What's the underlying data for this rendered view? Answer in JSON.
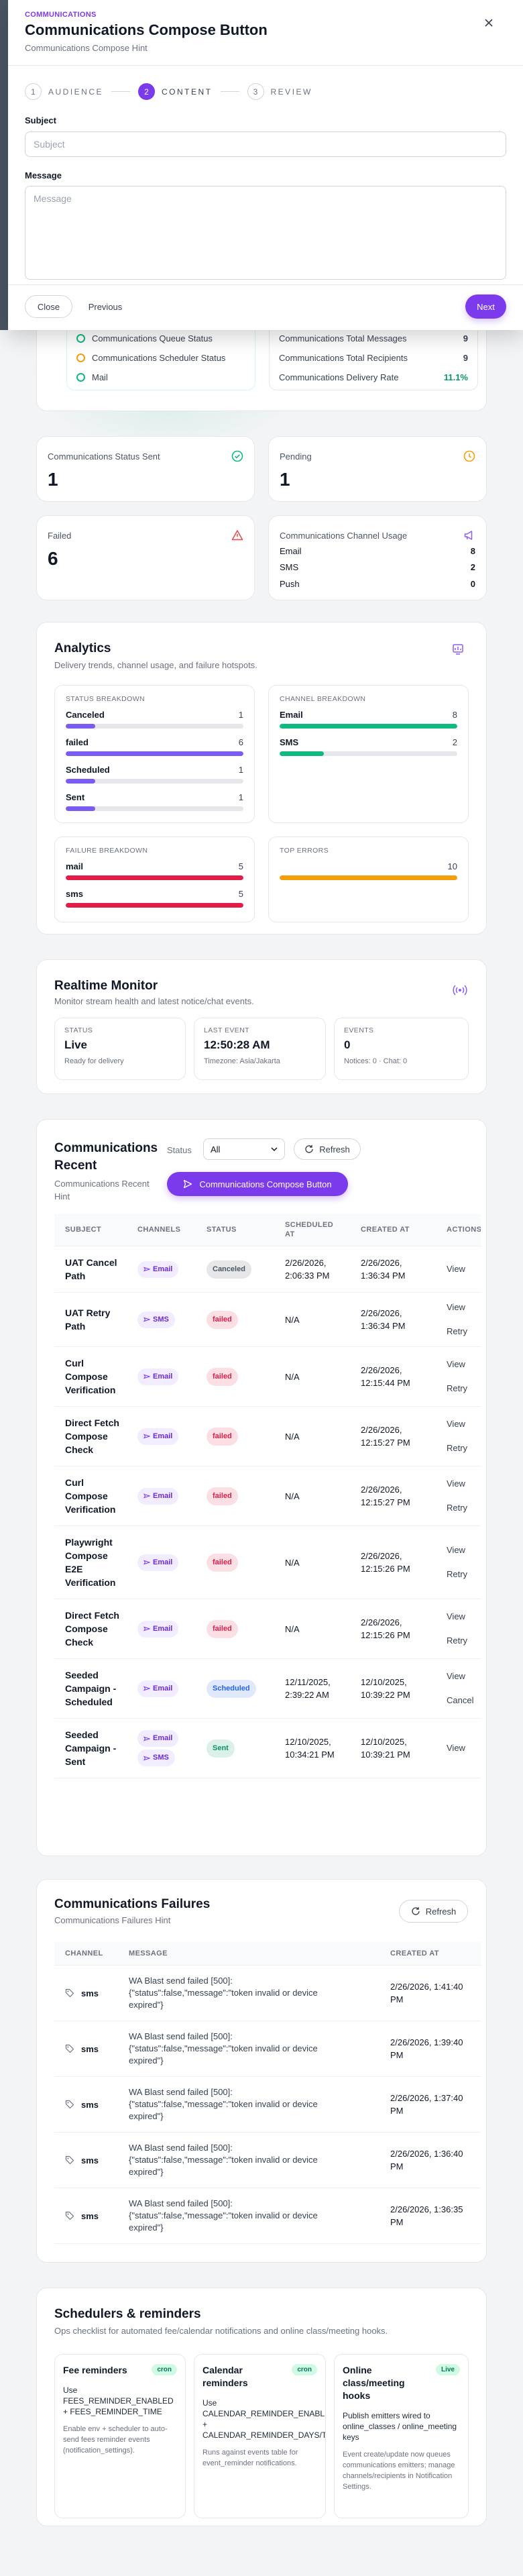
{
  "modal": {
    "eyebrow": "COMMUNICATIONS",
    "title": "Communications Compose Button",
    "hint": "Communications Compose Hint",
    "steps": [
      {
        "number": "1",
        "label": "AUDIENCE"
      },
      {
        "number": "2",
        "label": "CONTENT"
      },
      {
        "number": "3",
        "label": "REVIEW"
      }
    ],
    "subject_label": "Subject",
    "subject_placeholder": "Subject",
    "message_label": "Message",
    "message_placeholder": "Message",
    "close": "Close",
    "previous": "Previous",
    "next": "Next"
  },
  "overview": {
    "statuses": [
      "Communications Queue Status",
      "Communications Scheduler Status",
      "Mail"
    ],
    "totals": [
      {
        "label": "Communications Total Messages",
        "value": "9"
      },
      {
        "label": "Communications Total Recipients",
        "value": "9"
      },
      {
        "label": "Communications Delivery Rate",
        "value": "11.1%"
      }
    ]
  },
  "stats": {
    "sent": {
      "label": "Communications Status Sent",
      "value": "1"
    },
    "pending": {
      "label": "Pending",
      "value": "1"
    },
    "failed": {
      "label": "Failed",
      "value": "6"
    },
    "channel_usage": {
      "label": "Communications Channel Usage",
      "rows": [
        {
          "label": "Email",
          "value": "8"
        },
        {
          "label": "SMS",
          "value": "2"
        },
        {
          "label": "Push",
          "value": "0"
        }
      ]
    }
  },
  "analytics": {
    "title": "Analytics",
    "subtitle": "Delivery trends, channel usage, and failure hotspots.",
    "groups": [
      {
        "title": "STATUS BREAKDOWN",
        "color": "#7c5cf0",
        "items": [
          {
            "label": "Canceled",
            "value": 1
          },
          {
            "label": "failed",
            "value": 6
          },
          {
            "label": "Scheduled",
            "value": 1
          },
          {
            "label": "Sent",
            "value": 1
          }
        ]
      },
      {
        "title": "CHANNEL BREAKDOWN",
        "color": "#10b981",
        "items": [
          {
            "label": "Email",
            "value": 8
          },
          {
            "label": "SMS",
            "value": 2
          }
        ]
      },
      {
        "title": "FAILURE BREAKDOWN",
        "color": "#e11d48",
        "items": [
          {
            "label": "mail",
            "value": 5
          },
          {
            "label": "sms",
            "value": 5
          }
        ]
      },
      {
        "title": "TOP ERRORS",
        "color": "#f59e0b",
        "items": [
          {
            "value": 10
          }
        ]
      }
    ]
  },
  "realtime": {
    "title": "Realtime Monitor",
    "subtitle": "Monitor stream health and latest notice/chat events.",
    "boxes": [
      {
        "label": "STATUS",
        "value": "Live",
        "note": "Ready for delivery"
      },
      {
        "label": "LAST EVENT",
        "value": "12:50:28 AM",
        "note": "Timezone: Asia/Jakarta"
      },
      {
        "label": "EVENTS",
        "value": "0",
        "note": "Notices: 0 · Chat: 0"
      }
    ]
  },
  "recent": {
    "title": "Communications Recent",
    "hint": "Communications Recent Hint",
    "status_label": "Status",
    "status_value": "All",
    "refresh": "Refresh",
    "compose": "Communications Compose Button",
    "columns": [
      "SUBJECT",
      "CHANNELS",
      "STATUS",
      "SCHEDULED AT",
      "CREATED AT",
      "ACTIONS"
    ],
    "rows": [
      {
        "subject": "UAT Cancel Path",
        "channels": [
          "Email"
        ],
        "status": "Canceled",
        "status_color": "#4b5563",
        "scheduled_at": "2/26/2026, 2:06:33 PM",
        "created_at": "2/26/2026, 1:36:34 PM",
        "actions": [
          "View"
        ]
      },
      {
        "subject": "UAT Retry Path",
        "channels": [
          "SMS"
        ],
        "status": "failed",
        "status_color": "#e11d48",
        "scheduled_at": "N/A",
        "created_at": "2/26/2026, 1:36:34 PM",
        "actions": [
          "View",
          "Retry"
        ]
      },
      {
        "subject": "Curl Compose Verification",
        "channels": [
          "Email"
        ],
        "status": "failed",
        "status_color": "#e11d48",
        "scheduled_at": "N/A",
        "created_at": "2/26/2026, 12:15:44 PM",
        "actions": [
          "View",
          "Retry"
        ]
      },
      {
        "subject": "Direct Fetch Compose Check",
        "channels": [
          "Email"
        ],
        "status": "failed",
        "status_color": "#e11d48",
        "scheduled_at": "N/A",
        "created_at": "2/26/2026, 12:15:27 PM",
        "actions": [
          "View",
          "Retry"
        ]
      },
      {
        "subject": "Curl Compose Verification",
        "channels": [
          "Email"
        ],
        "status": "failed",
        "status_color": "#e11d48",
        "scheduled_at": "N/A",
        "created_at": "2/26/2026, 12:15:27 PM",
        "actions": [
          "View",
          "Retry"
        ]
      },
      {
        "subject": "Playwright Compose E2E Verification",
        "channels": [
          "Email"
        ],
        "status": "failed",
        "status_color": "#e11d48",
        "scheduled_at": "N/A",
        "created_at": "2/26/2026, 12:15:26 PM",
        "actions": [
          "View",
          "Retry"
        ]
      },
      {
        "subject": "Direct Fetch Compose Check",
        "channels": [
          "Email"
        ],
        "status": "failed",
        "status_color": "#e11d48",
        "scheduled_at": "N/A",
        "created_at": "2/26/2026, 12:15:26 PM",
        "actions": [
          "View",
          "Retry"
        ]
      },
      {
        "subject": "Seeded Campaign - Scheduled",
        "channels": [
          "Email"
        ],
        "status": "Scheduled",
        "status_color": "#2563eb",
        "scheduled_at": "12/11/2025, 2:39:22 AM",
        "created_at": "12/10/2025, 10:39:22 PM",
        "actions": [
          "View",
          "Cancel"
        ]
      },
      {
        "subject": "Seeded Campaign - Sent",
        "channels": [
          "Email",
          "SMS"
        ],
        "status": "Sent",
        "status_color": "#059669",
        "scheduled_at": "12/10/2025, 10:34:21 PM",
        "created_at": "12/10/2025, 10:39:21 PM",
        "actions": [
          "View"
        ]
      }
    ]
  },
  "failures": {
    "title": "Communications Failures",
    "hint": "Communications Failures Hint",
    "refresh": "Refresh",
    "columns": [
      "CHANNEL",
      "MESSAGE",
      "CREATED AT"
    ],
    "rows": [
      {
        "channel": "sms",
        "message": "WA Blast send failed [500]: {\"status\":false,\"message\":\"token invalid or device expired\"}",
        "created_at": "2/26/2026, 1:41:40 PM"
      },
      {
        "channel": "sms",
        "message": "WA Blast send failed [500]: {\"status\":false,\"message\":\"token invalid or device expired\"}",
        "created_at": "2/26/2026, 1:39:40 PM"
      },
      {
        "channel": "sms",
        "message": "WA Blast send failed [500]: {\"status\":false,\"message\":\"token invalid or device expired\"}",
        "created_at": "2/26/2026, 1:37:40 PM"
      },
      {
        "channel": "sms",
        "message": "WA Blast send failed [500]: {\"status\":false,\"message\":\"token invalid or device expired\"}",
        "created_at": "2/26/2026, 1:36:40 PM"
      },
      {
        "channel": "sms",
        "message": "WA Blast send failed [500]: {\"status\":false,\"message\":\"token invalid or device expired\"}",
        "created_at": "2/26/2026, 1:36:35 PM"
      }
    ]
  },
  "schedulers": {
    "title": "Schedulers & reminders",
    "subtitle": "Ops checklist for automated fee/calendar notifications and online class/meeting hooks.",
    "cards": [
      {
        "title": "Fee reminders",
        "badge": "cron",
        "body": "Use FEES_REMINDER_ENABLED + FEES_REMINDER_TIME",
        "note": "Enable env + scheduler to auto-send fees reminder events (notification_settings)."
      },
      {
        "title": "Calendar reminders",
        "badge": "cron",
        "body": "Use CALENDAR_REMINDER_ENABLED + CALENDAR_REMINDER_DAYS/TIME",
        "note": "Runs against events table for event_reminder notifications."
      },
      {
        "title": "Online class/meeting hooks",
        "badge": "Live",
        "body": "Publish emitters wired to online_classes / online_meeting keys",
        "note": "Event create/update now queues communications emitters; manage channels/recipients in Notification Settings."
      }
    ]
  }
}
